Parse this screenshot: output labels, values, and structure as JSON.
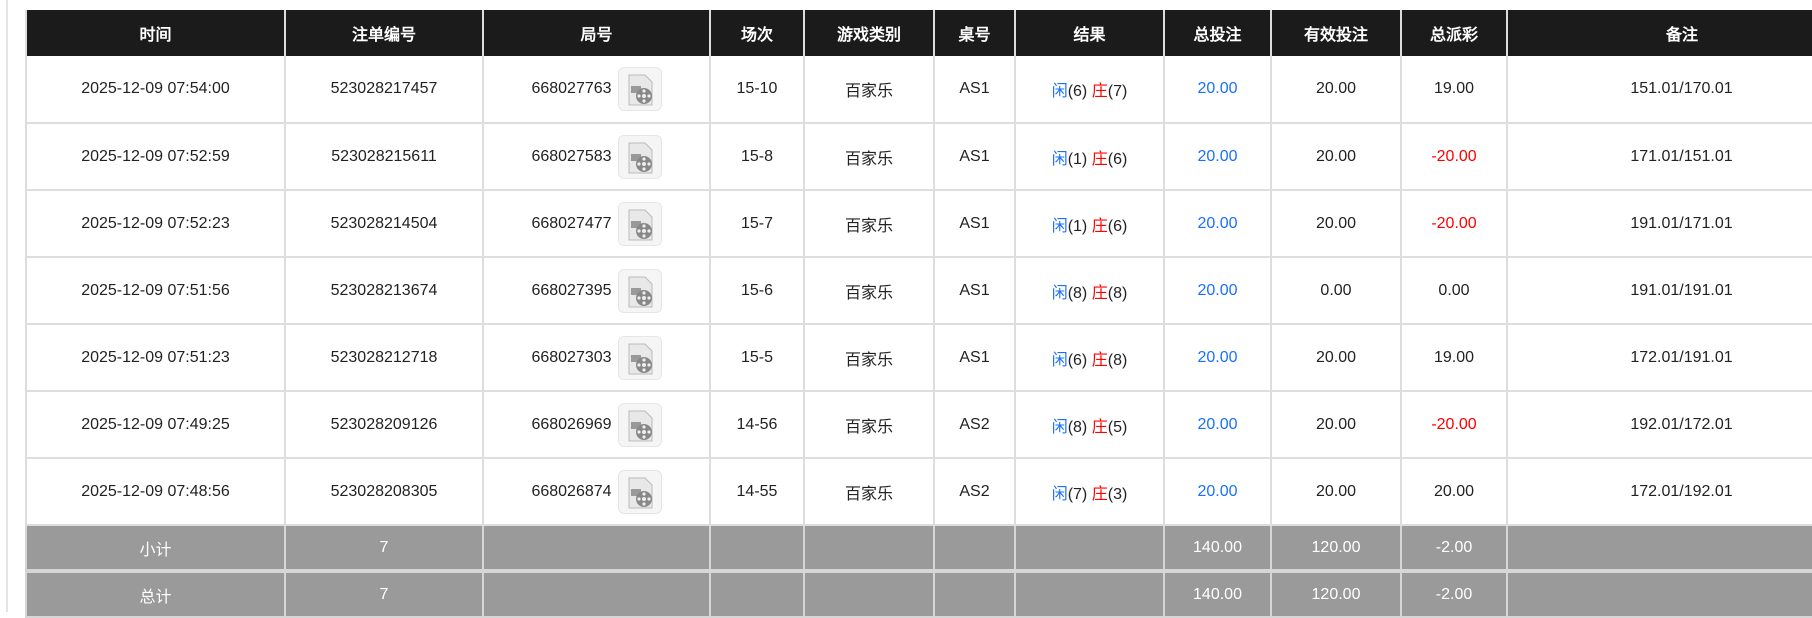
{
  "headers": [
    "时间",
    "注单编号",
    "局号",
    "场次",
    "游戏类别",
    "桌号",
    "结果",
    "总投注",
    "有效投注",
    "总派彩",
    "备注"
  ],
  "colors": {
    "player": "#1a6fff",
    "banker": "#ff0000",
    "negative": "#ff0000",
    "header_bg": "#1b1b1b",
    "summary_bg": "#9a9a9a"
  },
  "rows": [
    {
      "time": "2025-12-09 07:54:00",
      "bet_id": "523028217457",
      "round": "668027763",
      "shoe": "15-10",
      "game": "百家乐",
      "table": "AS1",
      "player_label": "闲",
      "player": "(6)",
      "banker_label": "庄",
      "banker": "(7)",
      "total_bet": "20.00",
      "valid_bet": "20.00",
      "payout": "19.00",
      "payout_negative": false,
      "note": "151.01/170.01"
    },
    {
      "time": "2025-12-09 07:52:59",
      "bet_id": "523028215611",
      "round": "668027583",
      "shoe": "15-8",
      "game": "百家乐",
      "table": "AS1",
      "player_label": "闲",
      "player": "(1)",
      "banker_label": "庄",
      "banker": "(6)",
      "total_bet": "20.00",
      "valid_bet": "20.00",
      "payout": "-20.00",
      "payout_negative": true,
      "note": "171.01/151.01"
    },
    {
      "time": "2025-12-09 07:52:23",
      "bet_id": "523028214504",
      "round": "668027477",
      "shoe": "15-7",
      "game": "百家乐",
      "table": "AS1",
      "player_label": "闲",
      "player": "(1)",
      "banker_label": "庄",
      "banker": "(6)",
      "total_bet": "20.00",
      "valid_bet": "20.00",
      "payout": "-20.00",
      "payout_negative": true,
      "note": "191.01/171.01"
    },
    {
      "time": "2025-12-09 07:51:56",
      "bet_id": "523028213674",
      "round": "668027395",
      "shoe": "15-6",
      "game": "百家乐",
      "table": "AS1",
      "player_label": "闲",
      "player": "(8)",
      "banker_label": "庄",
      "banker": "(8)",
      "total_bet": "20.00",
      "valid_bet": "0.00",
      "payout": "0.00",
      "payout_negative": false,
      "note": "191.01/191.01"
    },
    {
      "time": "2025-12-09 07:51:23",
      "bet_id": "523028212718",
      "round": "668027303",
      "shoe": "15-5",
      "game": "百家乐",
      "table": "AS1",
      "player_label": "闲",
      "player": "(6)",
      "banker_label": "庄",
      "banker": "(8)",
      "total_bet": "20.00",
      "valid_bet": "20.00",
      "payout": "19.00",
      "payout_negative": false,
      "note": "172.01/191.01"
    },
    {
      "time": "2025-12-09 07:49:25",
      "bet_id": "523028209126",
      "round": "668026969",
      "shoe": "14-56",
      "game": "百家乐",
      "table": "AS2",
      "player_label": "闲",
      "player": "(8)",
      "banker_label": "庄",
      "banker": "(5)",
      "total_bet": "20.00",
      "valid_bet": "20.00",
      "payout": "-20.00",
      "payout_negative": true,
      "note": "192.01/172.01"
    },
    {
      "time": "2025-12-09 07:48:56",
      "bet_id": "523028208305",
      "round": "668026874",
      "shoe": "14-55",
      "game": "百家乐",
      "table": "AS2",
      "player_label": "闲",
      "player": "(7)",
      "banker_label": "庄",
      "banker": "(3)",
      "total_bet": "20.00",
      "valid_bet": "20.00",
      "payout": "20.00",
      "payout_negative": false,
      "note": "172.01/192.01"
    }
  ],
  "summary": [
    {
      "label": "小计",
      "count": "7",
      "total_bet": "140.00",
      "valid_bet": "120.00",
      "payout": "-2.00"
    },
    {
      "label": "总计",
      "count": "7",
      "total_bet": "140.00",
      "valid_bet": "120.00",
      "payout": "-2.00"
    }
  ]
}
